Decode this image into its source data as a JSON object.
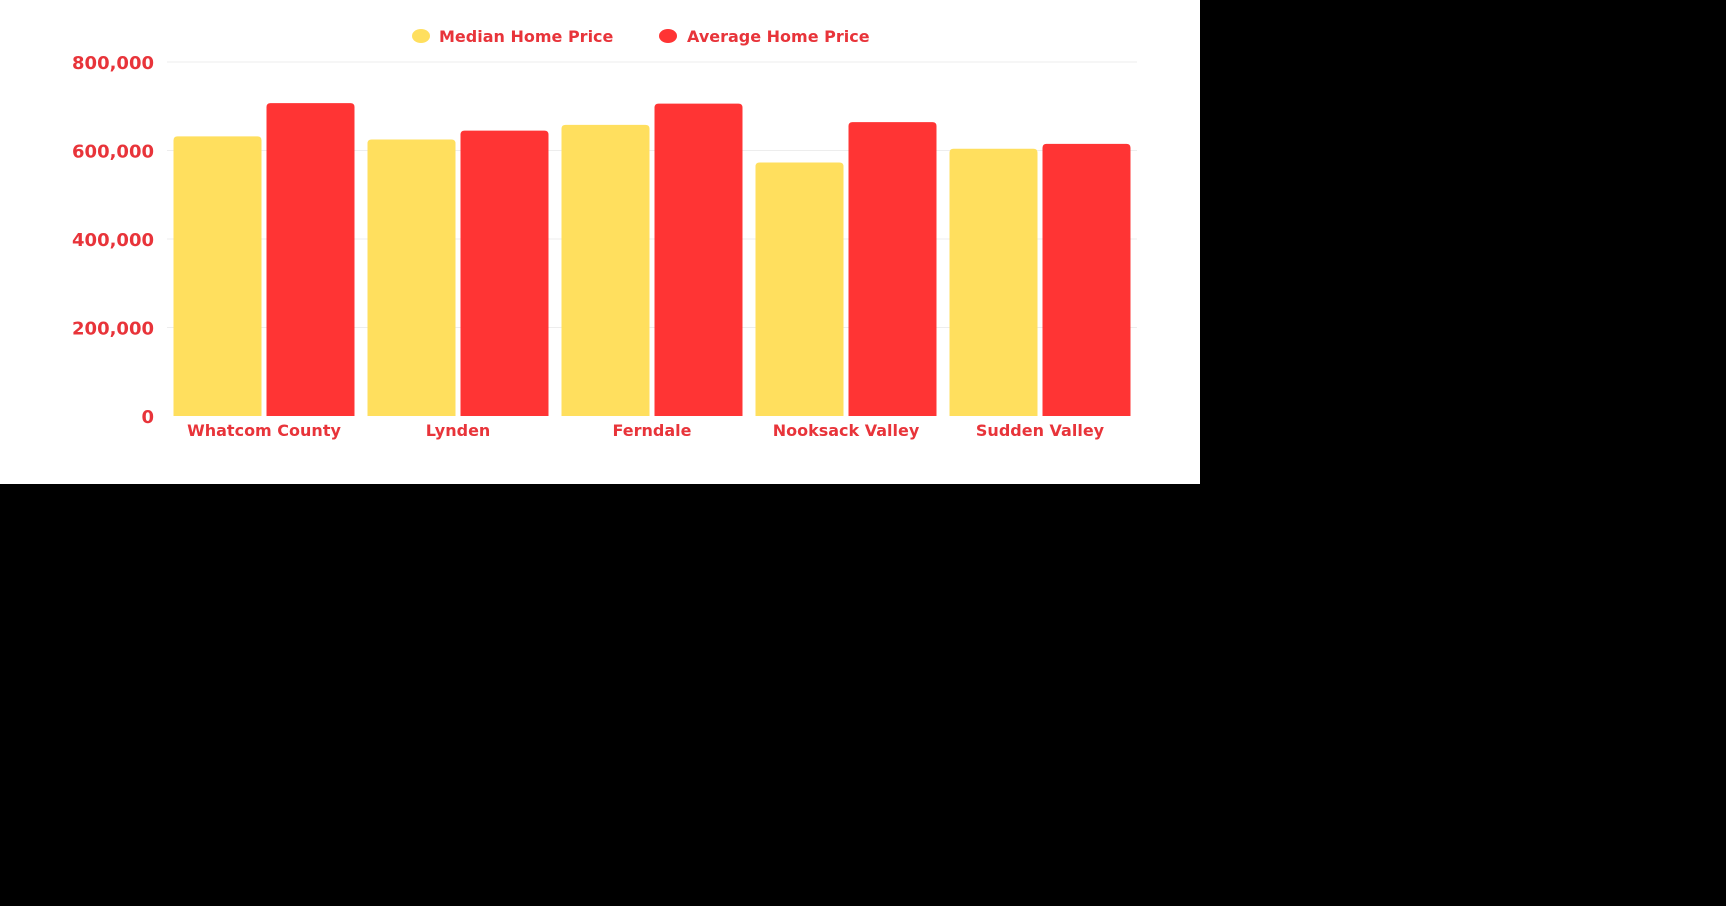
{
  "colors": {
    "median": "#FFDF5E",
    "average": "#FF3434",
    "text": "#E8343A",
    "grid": "#EDEDED",
    "panel": "#FFFFFF",
    "background": "#000000"
  },
  "chart_data": {
    "type": "bar",
    "categories": [
      "Whatcom County",
      "Lynden",
      "Ferndale",
      "Nooksack Valley",
      "Sudden Valley"
    ],
    "series": [
      {
        "name": "Median Home Price",
        "values": [
          632000,
          625000,
          658000,
          573000,
          604000
        ]
      },
      {
        "name": "Average Home Price",
        "values": [
          707000,
          645000,
          706000,
          664000,
          615000
        ]
      }
    ],
    "yticks": [
      "0",
      "200,000",
      "400,000",
      "600,000",
      "800,000"
    ],
    "ytick_values": [
      0,
      200000,
      400000,
      600000,
      800000
    ],
    "ylim": [
      0,
      800000
    ],
    "grid": true,
    "legend_position": "top-center",
    "title": "",
    "xlabel": "",
    "ylabel": ""
  }
}
